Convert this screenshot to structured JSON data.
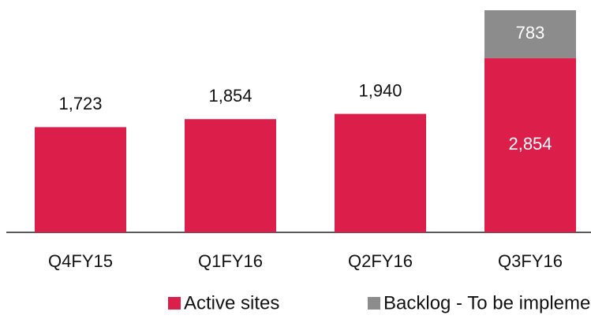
{
  "chart_data": {
    "type": "stacked_bar",
    "categories": [
      "Q4FY15",
      "Q1FY16",
      "Q2FY16",
      "Q3FY16"
    ],
    "series": [
      {
        "name": "Active sites",
        "color": "#dc1e4b",
        "values": [
          1723,
          1854,
          1940,
          2854
        ],
        "value_labels": [
          "1,723",
          "1,854",
          "1,940",
          "2,854"
        ]
      },
      {
        "name": "Backlog - To be implemented",
        "color": "#8c8c8c",
        "values": [
          null,
          null,
          null,
          783
        ],
        "value_labels": [
          null,
          null,
          null,
          "783"
        ]
      }
    ],
    "legend": "bottom"
  }
}
